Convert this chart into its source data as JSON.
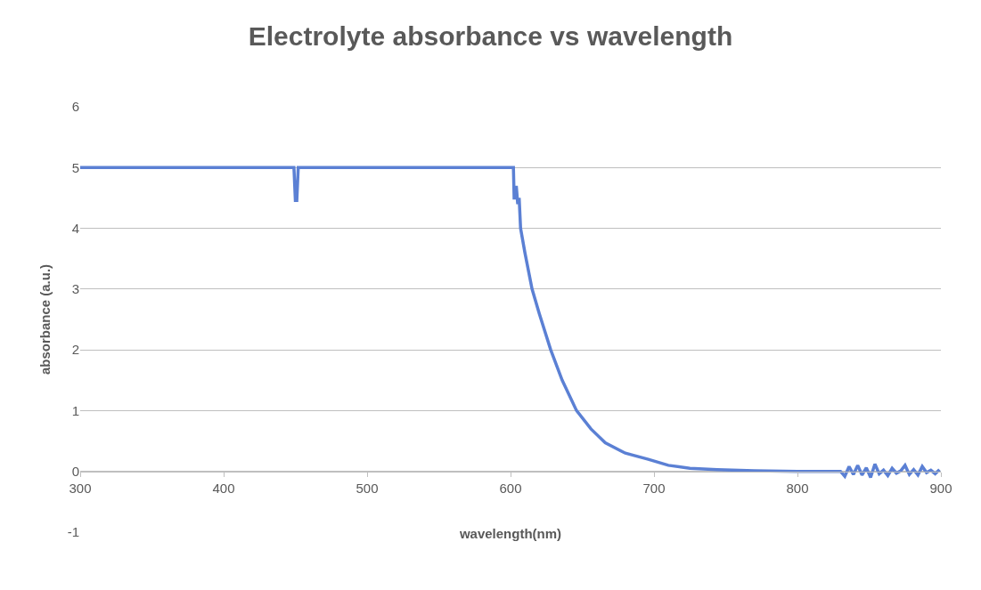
{
  "chart_data": {
    "type": "line",
    "title": "Electrolyte absorbance vs wavelength",
    "xlabel": "wavelength(nm)",
    "ylabel": "absorbance (a.u.)",
    "series": [
      {
        "color": "#5b80d4",
        "x": [
          300,
          350,
          400,
          449,
          450,
          451,
          452,
          500,
          550,
          601,
          602,
          602.5,
          603,
          604,
          605,
          606,
          607,
          610,
          615,
          620,
          628,
          636,
          646,
          656,
          666,
          680,
          696,
          710,
          725,
          744,
          770,
          800,
          830,
          833,
          836,
          839,
          842,
          845,
          848,
          851,
          854,
          857,
          860,
          863,
          866,
          869,
          872,
          875,
          878,
          881,
          884,
          887,
          890,
          893,
          896,
          899
        ],
        "values": [
          5,
          5,
          5,
          5,
          4.46,
          4.46,
          5,
          5,
          5,
          5,
          5,
          4.5,
          4.5,
          4.7,
          4.4,
          4.5,
          4.0,
          3.6,
          3.0,
          2.6,
          2.0,
          1.5,
          1.0,
          0.7,
          0.47,
          0.3,
          0.2,
          0.1,
          0.05,
          0.03,
          0.01,
          0.0,
          0.0,
          -0.08,
          0.08,
          -0.05,
          0.1,
          -0.06,
          0.06,
          -0.1,
          0.12,
          -0.04,
          0.02,
          -0.07,
          0.05,
          -0.03,
          0.01,
          0.1,
          -0.05,
          0.03,
          -0.06,
          0.08,
          -0.02,
          0.02,
          -0.04,
          0.03
        ]
      }
    ],
    "xlim": [
      300,
      900
    ],
    "xticks": [
      300,
      400,
      500,
      600,
      700,
      800,
      900
    ],
    "ylim": [
      -1,
      6
    ],
    "yticks": [
      -1,
      0,
      1,
      2,
      3,
      4,
      5,
      6
    ],
    "grid": "y",
    "marker": "none",
    "line_style": "solid"
  }
}
